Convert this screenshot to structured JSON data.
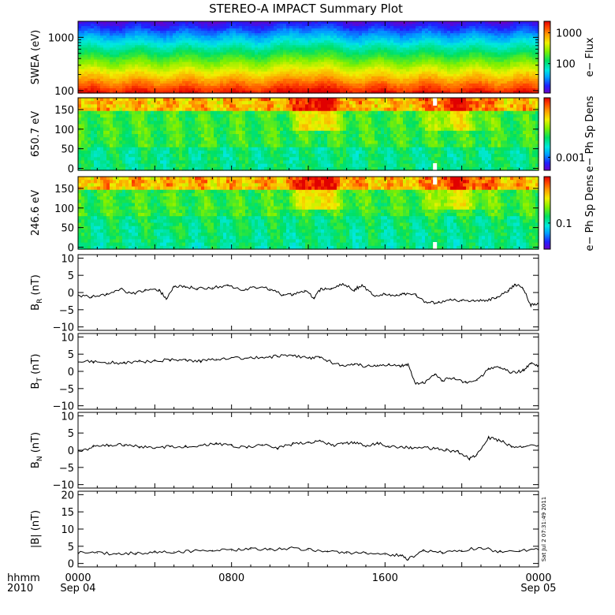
{
  "figure": {
    "title": "STEREO-A IMPACT Summary Plot",
    "timestamp": "Sat Jul  2 07:31:49 2011"
  },
  "x_axis": {
    "corner_top": "hhmm",
    "corner_bottom": "2010",
    "ticks": [
      {
        "value": 0,
        "top": "0000",
        "bottom": "Sep 04"
      },
      {
        "value": 8,
        "top": "0800",
        "bottom": ""
      },
      {
        "value": 16,
        "top": "1600",
        "bottom": ""
      },
      {
        "value": 24,
        "top": "0000",
        "bottom": "Sep 05"
      }
    ],
    "range_hours": [
      0,
      24
    ]
  },
  "chart_data": [
    {
      "type": "heatmap",
      "name": "swea",
      "ylabel": "SWEA (eV)",
      "yscale": "log",
      "ylim": [
        90,
        2000
      ],
      "yticks": [
        {
          "value": 100,
          "label": "100"
        },
        {
          "value": 1000,
          "label": "1000"
        }
      ],
      "colorbar": {
        "label": "e− Flux",
        "scale": "log",
        "ticks": [
          {
            "label": "100",
            "frac": 0.41
          },
          {
            "label": "1000",
            "frac": 0.84
          }
        ]
      }
    },
    {
      "type": "heatmap",
      "name": "pad650",
      "ylabel": "650.7 eV",
      "ylim": [
        -5,
        180
      ],
      "yticks": [
        {
          "value": 0,
          "label": "0"
        },
        {
          "value": 50,
          "label": "50"
        },
        {
          "value": 100,
          "label": "100"
        },
        {
          "value": 150,
          "label": "150"
        }
      ],
      "colorbar": {
        "label": "e− Ph Sp Dens",
        "scale": "log",
        "ticks": [
          {
            "label": "0.001",
            "frac": 0.18
          }
        ]
      }
    },
    {
      "type": "heatmap",
      "name": "pad246",
      "ylabel": "246.6 eV",
      "ylim": [
        -5,
        180
      ],
      "yticks": [
        {
          "value": 0,
          "label": "0"
        },
        {
          "value": 50,
          "label": "50"
        },
        {
          "value": 100,
          "label": "100"
        },
        {
          "value": 150,
          "label": "150"
        }
      ],
      "colorbar": {
        "label": "e− Ph Sp Dens",
        "scale": "log",
        "ticks": [
          {
            "label": "0.1",
            "frac": 0.36
          }
        ]
      }
    },
    {
      "type": "line",
      "name": "br",
      "ylabel_main": "B",
      "ylabel_sub": "R",
      "ylabel_unit": " (nT)",
      "ylim": [
        -11,
        11
      ],
      "yticks": [
        {
          "value": -10,
          "label": "−10"
        },
        {
          "value": -5,
          "label": "−5"
        },
        {
          "value": 0,
          "label": "0"
        },
        {
          "value": 5,
          "label": "5"
        },
        {
          "value": 10,
          "label": "10"
        }
      ],
      "x": [
        0,
        0.7,
        1.5,
        2.2,
        2.8,
        3.5,
        4.2,
        4.6,
        5.0,
        5.6,
        6.2,
        7.0,
        7.8,
        8.6,
        9.2,
        10.0,
        10.7,
        11.2,
        11.8,
        12.3,
        12.7,
        13.2,
        13.8,
        14.4,
        14.8,
        15.4,
        16.0,
        16.6,
        17.0,
        17.6,
        18.2,
        18.8,
        19.4,
        20.0,
        20.6,
        21.2,
        21.8,
        22.4,
        22.8,
        23.2,
        23.6,
        24.0
      ],
      "values": [
        -1.0,
        -1.2,
        -0.6,
        1.0,
        -0.2,
        0.5,
        0.8,
        -1.8,
        1.8,
        1.6,
        1.2,
        1.4,
        2.0,
        0.6,
        1.6,
        1.0,
        -0.8,
        -0.5,
        0.6,
        -1.5,
        1.2,
        1.0,
        2.6,
        0.8,
        2.2,
        -0.8,
        -0.6,
        -0.8,
        -0.4,
        -0.8,
        -3.0,
        -2.8,
        -2.0,
        -2.4,
        -2.2,
        -2.6,
        -1.4,
        0.6,
        2.4,
        1.2,
        -3.6,
        -3.2
      ]
    },
    {
      "type": "line",
      "name": "bt",
      "ylabel_main": "B",
      "ylabel_sub": "T",
      "ylabel_unit": " (nT)",
      "ylim": [
        -11,
        11
      ],
      "yticks": [
        {
          "value": -10,
          "label": "−10"
        },
        {
          "value": -5,
          "label": "−5"
        },
        {
          "value": 0,
          "label": "0"
        },
        {
          "value": 5,
          "label": "5"
        },
        {
          "value": 10,
          "label": "10"
        }
      ],
      "x": [
        0,
        0.8,
        1.6,
        2.4,
        3.2,
        4.0,
        4.8,
        5.6,
        6.4,
        7.2,
        8.0,
        8.8,
        9.6,
        10.4,
        11.2,
        12.0,
        12.6,
        13.2,
        13.8,
        14.4,
        15.0,
        15.6,
        16.2,
        16.8,
        17.2,
        17.6,
        18.0,
        18.6,
        19.0,
        19.6,
        20.2,
        20.8,
        21.4,
        22.0,
        22.6,
        23.2,
        23.6,
        24.0
      ],
      "values": [
        3.0,
        2.8,
        2.6,
        2.4,
        2.8,
        3.0,
        3.4,
        3.2,
        3.0,
        3.6,
        4.0,
        3.8,
        4.0,
        4.4,
        4.6,
        3.8,
        4.2,
        2.6,
        1.8,
        2.2,
        1.4,
        1.8,
        2.0,
        1.6,
        2.2,
        -3.6,
        -3.4,
        -1.0,
        -2.6,
        -1.8,
        -3.2,
        -2.6,
        0.6,
        1.2,
        -0.4,
        0.2,
        2.4,
        1.8
      ]
    },
    {
      "type": "line",
      "name": "bn",
      "ylabel_main": "B",
      "ylabel_sub": "N",
      "ylabel_unit": " (nT)",
      "ylim": [
        -11,
        11
      ],
      "yticks": [
        {
          "value": -10,
          "label": "−10"
        },
        {
          "value": -5,
          "label": "−5"
        },
        {
          "value": 0,
          "label": "0"
        },
        {
          "value": 5,
          "label": "5"
        },
        {
          "value": 10,
          "label": "10"
        }
      ],
      "x": [
        0,
        0.8,
        1.6,
        2.4,
        3.2,
        4.0,
        4.8,
        5.6,
        6.4,
        7.2,
        8.0,
        8.8,
        9.6,
        10.4,
        11.2,
        12.0,
        12.6,
        13.2,
        13.8,
        14.4,
        15.0,
        15.6,
        16.2,
        16.8,
        17.4,
        18.0,
        18.6,
        19.2,
        19.8,
        20.4,
        20.8,
        21.4,
        22.0,
        22.6,
        23.2,
        24.0
      ],
      "values": [
        -0.6,
        1.0,
        1.4,
        1.6,
        1.0,
        0.6,
        1.2,
        1.0,
        1.4,
        1.8,
        1.4,
        0.8,
        1.6,
        0.6,
        1.8,
        2.2,
        2.8,
        1.4,
        1.8,
        2.4,
        1.0,
        2.0,
        1.2,
        1.0,
        0.6,
        0.8,
        0.4,
        0.0,
        -0.4,
        -2.4,
        -1.2,
        3.6,
        2.8,
        1.2,
        1.0,
        1.4
      ]
    },
    {
      "type": "line",
      "name": "bmag",
      "ylabel_main": "|B|",
      "ylabel_sub": "",
      "ylabel_unit": " (nT)",
      "ylim": [
        -1,
        21
      ],
      "yticks": [
        {
          "value": 0,
          "label": "0"
        },
        {
          "value": 5,
          "label": "5"
        },
        {
          "value": 10,
          "label": "10"
        },
        {
          "value": 15,
          "label": "15"
        },
        {
          "value": 20,
          "label": "20"
        }
      ],
      "x": [
        0,
        1,
        2,
        3,
        4,
        5,
        6,
        7,
        8,
        9,
        10,
        11,
        12,
        13,
        14,
        15,
        16,
        16.8,
        17.2,
        18,
        19,
        20,
        21,
        22,
        23,
        24
      ],
      "values": [
        3.2,
        3.0,
        2.8,
        3.0,
        3.2,
        3.4,
        3.6,
        3.8,
        3.8,
        4.2,
        4.0,
        4.4,
        4.0,
        3.6,
        3.0,
        3.2,
        2.6,
        2.4,
        1.2,
        3.6,
        3.2,
        3.8,
        4.6,
        3.4,
        3.8,
        4.0
      ]
    }
  ]
}
